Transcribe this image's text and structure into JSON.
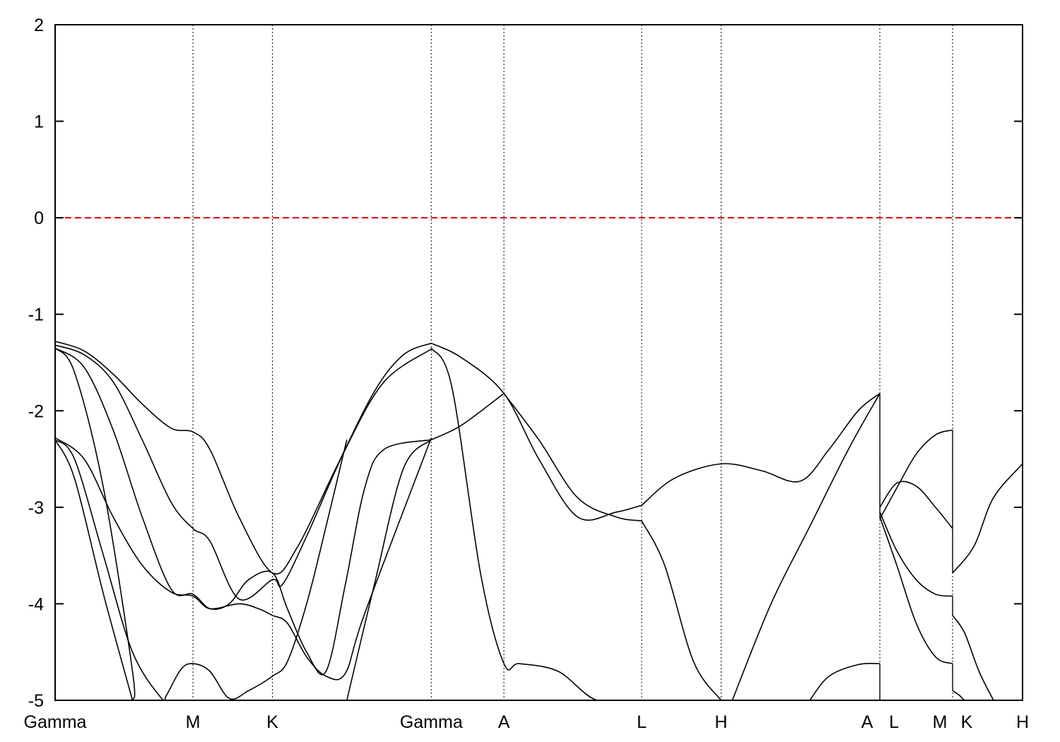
{
  "chart_data": {
    "type": "line",
    "title": "",
    "xlabel": "",
    "ylabel": "",
    "ylim": [
      -5,
      2
    ],
    "yticks": [
      2,
      1,
      0,
      -1,
      -2,
      -3,
      -4,
      -5
    ],
    "ytick_labels": [
      "2",
      "1",
      "0",
      "-1",
      "-2",
      "-3",
      "-4",
      "-5"
    ],
    "xlim": [
      0,
      1
    ],
    "kpoints": [
      {
        "label": "Gamma",
        "x": 0.0
      },
      {
        "label": "M",
        "x": 0.1425
      },
      {
        "label": "K",
        "x": 0.2246
      },
      {
        "label": "Gamma",
        "x": 0.3888
      },
      {
        "label": "A",
        "x": 0.4639
      },
      {
        "label": "L",
        "x": 0.6063
      },
      {
        "label": "H",
        "x": 0.6884
      },
      {
        "label": "A",
        "x": 0.8525
      },
      {
        "label": "L",
        "x": 0.8525
      },
      {
        "label": "M",
        "x": 0.9277
      },
      {
        "label": "K",
        "x": 0.9277
      },
      {
        "label": "H",
        "x": 1.0
      }
    ],
    "grid": "vertical dotted lines at k-points",
    "fermi_level": {
      "y": 0,
      "color": "#dd0000",
      "style": "dashed"
    },
    "line_color": "#000000",
    "series": [
      {
        "x": [
          0.0,
          0.03,
          0.06,
          0.09,
          0.12,
          0.1425,
          0.16,
          0.19,
          0.2246,
          0.25,
          0.29,
          0.33,
          0.36,
          0.3888
        ],
        "y": [
          -1.28,
          -1.38,
          -1.62,
          -1.93,
          -2.18,
          -2.22,
          -2.4,
          -3.1,
          -3.68,
          -3.42,
          -2.6,
          -1.8,
          -1.42,
          -1.3
        ]
      },
      {
        "x": [
          0.0,
          0.03,
          0.06,
          0.09,
          0.12,
          0.1425,
          0.16,
          0.19,
          0.2246,
          0.235,
          0.26,
          0.3,
          0.34,
          0.3888
        ],
        "y": [
          -1.32,
          -1.42,
          -1.7,
          -2.3,
          -2.95,
          -3.22,
          -3.35,
          -3.95,
          -3.75,
          -3.8,
          -3.3,
          -2.4,
          -1.7,
          -1.36
        ]
      },
      {
        "x": [
          0.0,
          0.03,
          0.06,
          0.09,
          0.12,
          0.1425,
          0.16,
          0.18,
          0.2,
          0.2246,
          0.24,
          0.26,
          0.28,
          0.3,
          0.32,
          0.34,
          0.3888
        ],
        "y": [
          -1.35,
          -1.55,
          -2.2,
          -3.1,
          -3.85,
          -3.9,
          -4.05,
          -4.0,
          -3.75,
          -3.68,
          -4.05,
          -4.5,
          -4.7,
          -3.8,
          -2.8,
          -2.4,
          -2.3
        ]
      },
      {
        "x": [
          0.0,
          0.03,
          0.06,
          0.09,
          0.12,
          0.1425,
          0.16,
          0.19,
          0.21,
          0.2246,
          0.24,
          0.26,
          0.28,
          0.3,
          0.32,
          0.3888
        ],
        "y": [
          -2.28,
          -2.5,
          -3.1,
          -3.6,
          -3.88,
          -3.92,
          -4.05,
          -4.0,
          -4.05,
          -4.12,
          -4.2,
          -4.55,
          -4.75,
          -4.72,
          -4.1,
          -2.28
        ]
      },
      {
        "x": [
          0.0,
          0.02,
          0.05,
          0.08,
          0.0802
        ],
        "y": [
          -1.35,
          -1.6,
          -2.8,
          -4.7,
          -5.0
        ]
      },
      {
        "x": [
          0.0,
          0.02,
          0.05,
          0.08,
          0.11,
          0.115,
          0.13,
          0.1425,
          0.16,
          0.18,
          0.2,
          0.2246,
          0.24,
          0.26,
          0.28,
          0.3015
        ],
        "y": [
          -2.3,
          -2.5,
          -3.5,
          -4.5,
          -4.98,
          -4.95,
          -4.68,
          -4.62,
          -4.7,
          -4.98,
          -4.9,
          -4.75,
          -4.6,
          -4.0,
          -3.2,
          -2.3
        ]
      },
      {
        "x": [
          0.0,
          0.02,
          0.05,
          0.08
        ],
        "y": [
          -2.3,
          -2.7,
          -3.9,
          -5.0
        ]
      },
      {
        "x": [
          0.3015,
          0.33,
          0.36,
          0.3888
        ],
        "y": [
          -5.0,
          -3.8,
          -2.6,
          -2.3
        ]
      },
      {
        "x": [
          0.3888,
          0.42,
          0.4639,
          0.5,
          0.54,
          0.58,
          0.6063
        ],
        "y": [
          -1.3,
          -1.45,
          -1.82,
          -2.5,
          -3.1,
          -3.05,
          -2.98
        ]
      },
      {
        "x": [
          0.3888,
          0.42,
          0.4639
        ],
        "y": [
          -2.3,
          -2.15,
          -1.82
        ]
      },
      {
        "x": [
          0.3888,
          0.41,
          0.44,
          0.4639,
          0.48,
          0.52,
          0.56,
          0.6063
        ],
        "y": [
          -1.35,
          -1.75,
          -3.7,
          -4.62,
          -4.62,
          -4.7,
          -5.0,
          -5.0
        ]
      },
      {
        "x": [
          0.4639,
          0.5,
          0.54,
          0.58,
          0.6063
        ],
        "y": [
          -1.82,
          -2.3,
          -2.9,
          -3.1,
          -3.14
        ]
      },
      {
        "x": [
          0.6063,
          0.64,
          0.6884,
          0.73,
          0.77,
          0.8,
          0.83,
          0.8525
        ],
        "y": [
          -2.98,
          -2.7,
          -2.55,
          -2.62,
          -2.73,
          -2.4,
          -2.0,
          -1.82
        ]
      },
      {
        "x": [
          0.6063,
          0.63,
          0.66,
          0.6884
        ],
        "y": [
          -3.14,
          -3.6,
          -4.6,
          -5.0
        ]
      },
      {
        "x": [
          0.7,
          0.74,
          0.78,
          0.82,
          0.8525
        ],
        "y": [
          -5.0,
          -4.0,
          -3.2,
          -2.4,
          -1.82
        ]
      },
      {
        "x": [
          0.78,
          0.8,
          0.83,
          0.8525
        ],
        "y": [
          -5.0,
          -4.75,
          -4.63,
          -4.62
        ]
      },
      {
        "x": [
          0.8525,
          0.87,
          0.89,
          0.91,
          0.9277
        ],
        "y": [
          -3.0,
          -2.75,
          -2.78,
          -3.0,
          -3.22
        ]
      },
      {
        "x": [
          0.8525,
          0.87,
          0.89,
          0.91,
          0.9277
        ],
        "y": [
          -3.12,
          -2.8,
          -2.45,
          -2.25,
          -2.2
        ]
      },
      {
        "x": [
          0.8525,
          0.87,
          0.89,
          0.91,
          0.9277
        ],
        "y": [
          -3.05,
          -3.45,
          -3.75,
          -3.9,
          -3.92
        ]
      },
      {
        "x": [
          0.8525,
          0.87,
          0.89,
          0.91,
          0.9277
        ],
        "y": [
          -3.1,
          -3.6,
          -4.2,
          -4.55,
          -4.62
        ]
      },
      {
        "x": [
          0.9277,
          0.95,
          0.97,
          1.0
        ],
        "y": [
          -3.68,
          -3.4,
          -2.9,
          -2.55
        ]
      },
      {
        "x": [
          0.9277,
          0.94,
          0.955,
          0.97
        ],
        "y": [
          -4.12,
          -4.3,
          -4.7,
          -5.0
        ]
      },
      {
        "x": [
          0.9277,
          0.935,
          0.94,
          0.945
        ],
        "y": [
          -4.9,
          -4.95,
          -5.0,
          -5.0
        ]
      }
    ]
  }
}
